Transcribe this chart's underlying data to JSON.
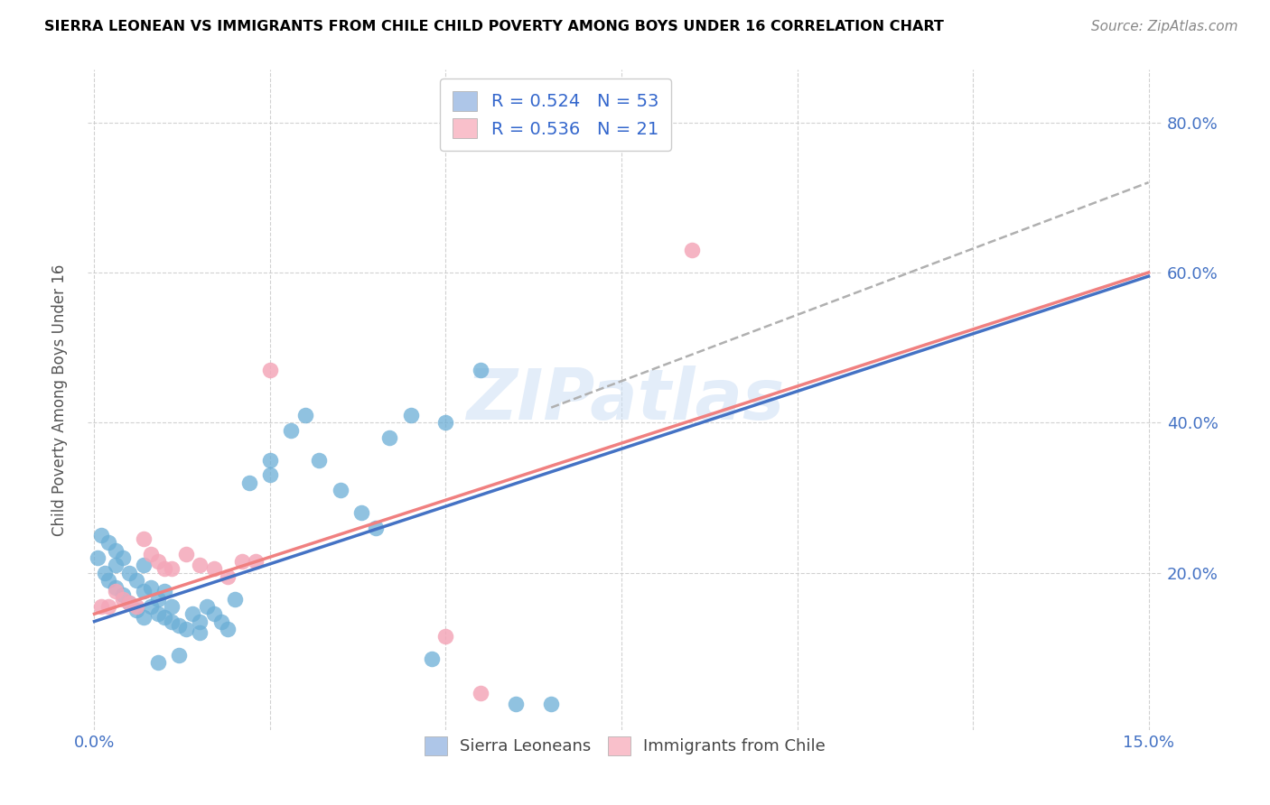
{
  "title": "SIERRA LEONEAN VS IMMIGRANTS FROM CHILE CHILD POVERTY AMONG BOYS UNDER 16 CORRELATION CHART",
  "source": "Source: ZipAtlas.com",
  "ylabel": "Child Poverty Among Boys Under 16",
  "xlim": [
    -0.001,
    0.152
  ],
  "ylim": [
    -0.01,
    0.87
  ],
  "xtick_positions": [
    0.0,
    0.025,
    0.05,
    0.075,
    0.1,
    0.125,
    0.15
  ],
  "xtick_labels": [
    "0.0%",
    "",
    "",
    "",
    "",
    "",
    "15.0%"
  ],
  "ytick_positions": [
    0.2,
    0.4,
    0.6,
    0.8
  ],
  "ytick_labels": [
    "20.0%",
    "40.0%",
    "60.0%",
    "80.0%"
  ],
  "watermark": "ZIPatlas",
  "legend_entries": [
    {
      "label": "R = 0.524   N = 53",
      "facecolor": "#aec6e8"
    },
    {
      "label": "R = 0.536   N = 21",
      "facecolor": "#f9c0cb"
    }
  ],
  "blue_scatter_x": [
    0.0005,
    0.001,
    0.0015,
    0.002,
    0.002,
    0.003,
    0.003,
    0.003,
    0.004,
    0.004,
    0.005,
    0.005,
    0.006,
    0.006,
    0.007,
    0.007,
    0.008,
    0.008,
    0.009,
    0.009,
    0.01,
    0.01,
    0.011,
    0.011,
    0.012,
    0.013,
    0.014,
    0.015,
    0.016,
    0.017,
    0.018,
    0.019,
    0.02,
    0.022,
    0.025,
    0.025,
    0.028,
    0.03,
    0.032,
    0.035,
    0.038,
    0.04,
    0.042,
    0.045,
    0.048,
    0.05,
    0.055,
    0.06,
    0.065,
    0.007,
    0.009,
    0.012,
    0.015
  ],
  "blue_scatter_y": [
    0.22,
    0.25,
    0.2,
    0.19,
    0.24,
    0.18,
    0.21,
    0.23,
    0.17,
    0.22,
    0.16,
    0.2,
    0.15,
    0.19,
    0.14,
    0.21,
    0.155,
    0.18,
    0.145,
    0.165,
    0.14,
    0.175,
    0.135,
    0.155,
    0.13,
    0.125,
    0.145,
    0.135,
    0.155,
    0.145,
    0.135,
    0.125,
    0.165,
    0.32,
    0.35,
    0.33,
    0.39,
    0.41,
    0.35,
    0.31,
    0.28,
    0.26,
    0.38,
    0.41,
    0.085,
    0.4,
    0.47,
    0.025,
    0.025,
    0.175,
    0.08,
    0.09,
    0.12
  ],
  "pink_scatter_x": [
    0.001,
    0.002,
    0.003,
    0.004,
    0.005,
    0.006,
    0.007,
    0.008,
    0.009,
    0.01,
    0.011,
    0.013,
    0.015,
    0.017,
    0.019,
    0.021,
    0.023,
    0.025,
    0.05,
    0.055,
    0.085
  ],
  "pink_scatter_y": [
    0.155,
    0.155,
    0.175,
    0.165,
    0.16,
    0.155,
    0.245,
    0.225,
    0.215,
    0.205,
    0.205,
    0.225,
    0.21,
    0.205,
    0.195,
    0.215,
    0.215,
    0.47,
    0.115,
    0.04,
    0.63
  ],
  "blue_line_x": [
    0.0,
    0.15
  ],
  "blue_line_y": [
    0.135,
    0.595
  ],
  "pink_line_x": [
    0.0,
    0.15
  ],
  "pink_line_y": [
    0.145,
    0.6
  ],
  "dash_line_x": [
    0.065,
    0.15
  ],
  "dash_line_y": [
    0.42,
    0.72
  ],
  "blue_scatter_color": "#6baed6",
  "pink_scatter_color": "#f4a7b9",
  "blue_line_color": "#4472c4",
  "pink_line_color": "#f08080",
  "dash_line_color": "#b0b0b0",
  "legend_text_color": "#3366cc",
  "bottom_legend_labels": [
    "Sierra Leoneans",
    "Immigrants from Chile"
  ],
  "bottom_legend_colors": [
    "#aec6e8",
    "#f9c0cb"
  ]
}
